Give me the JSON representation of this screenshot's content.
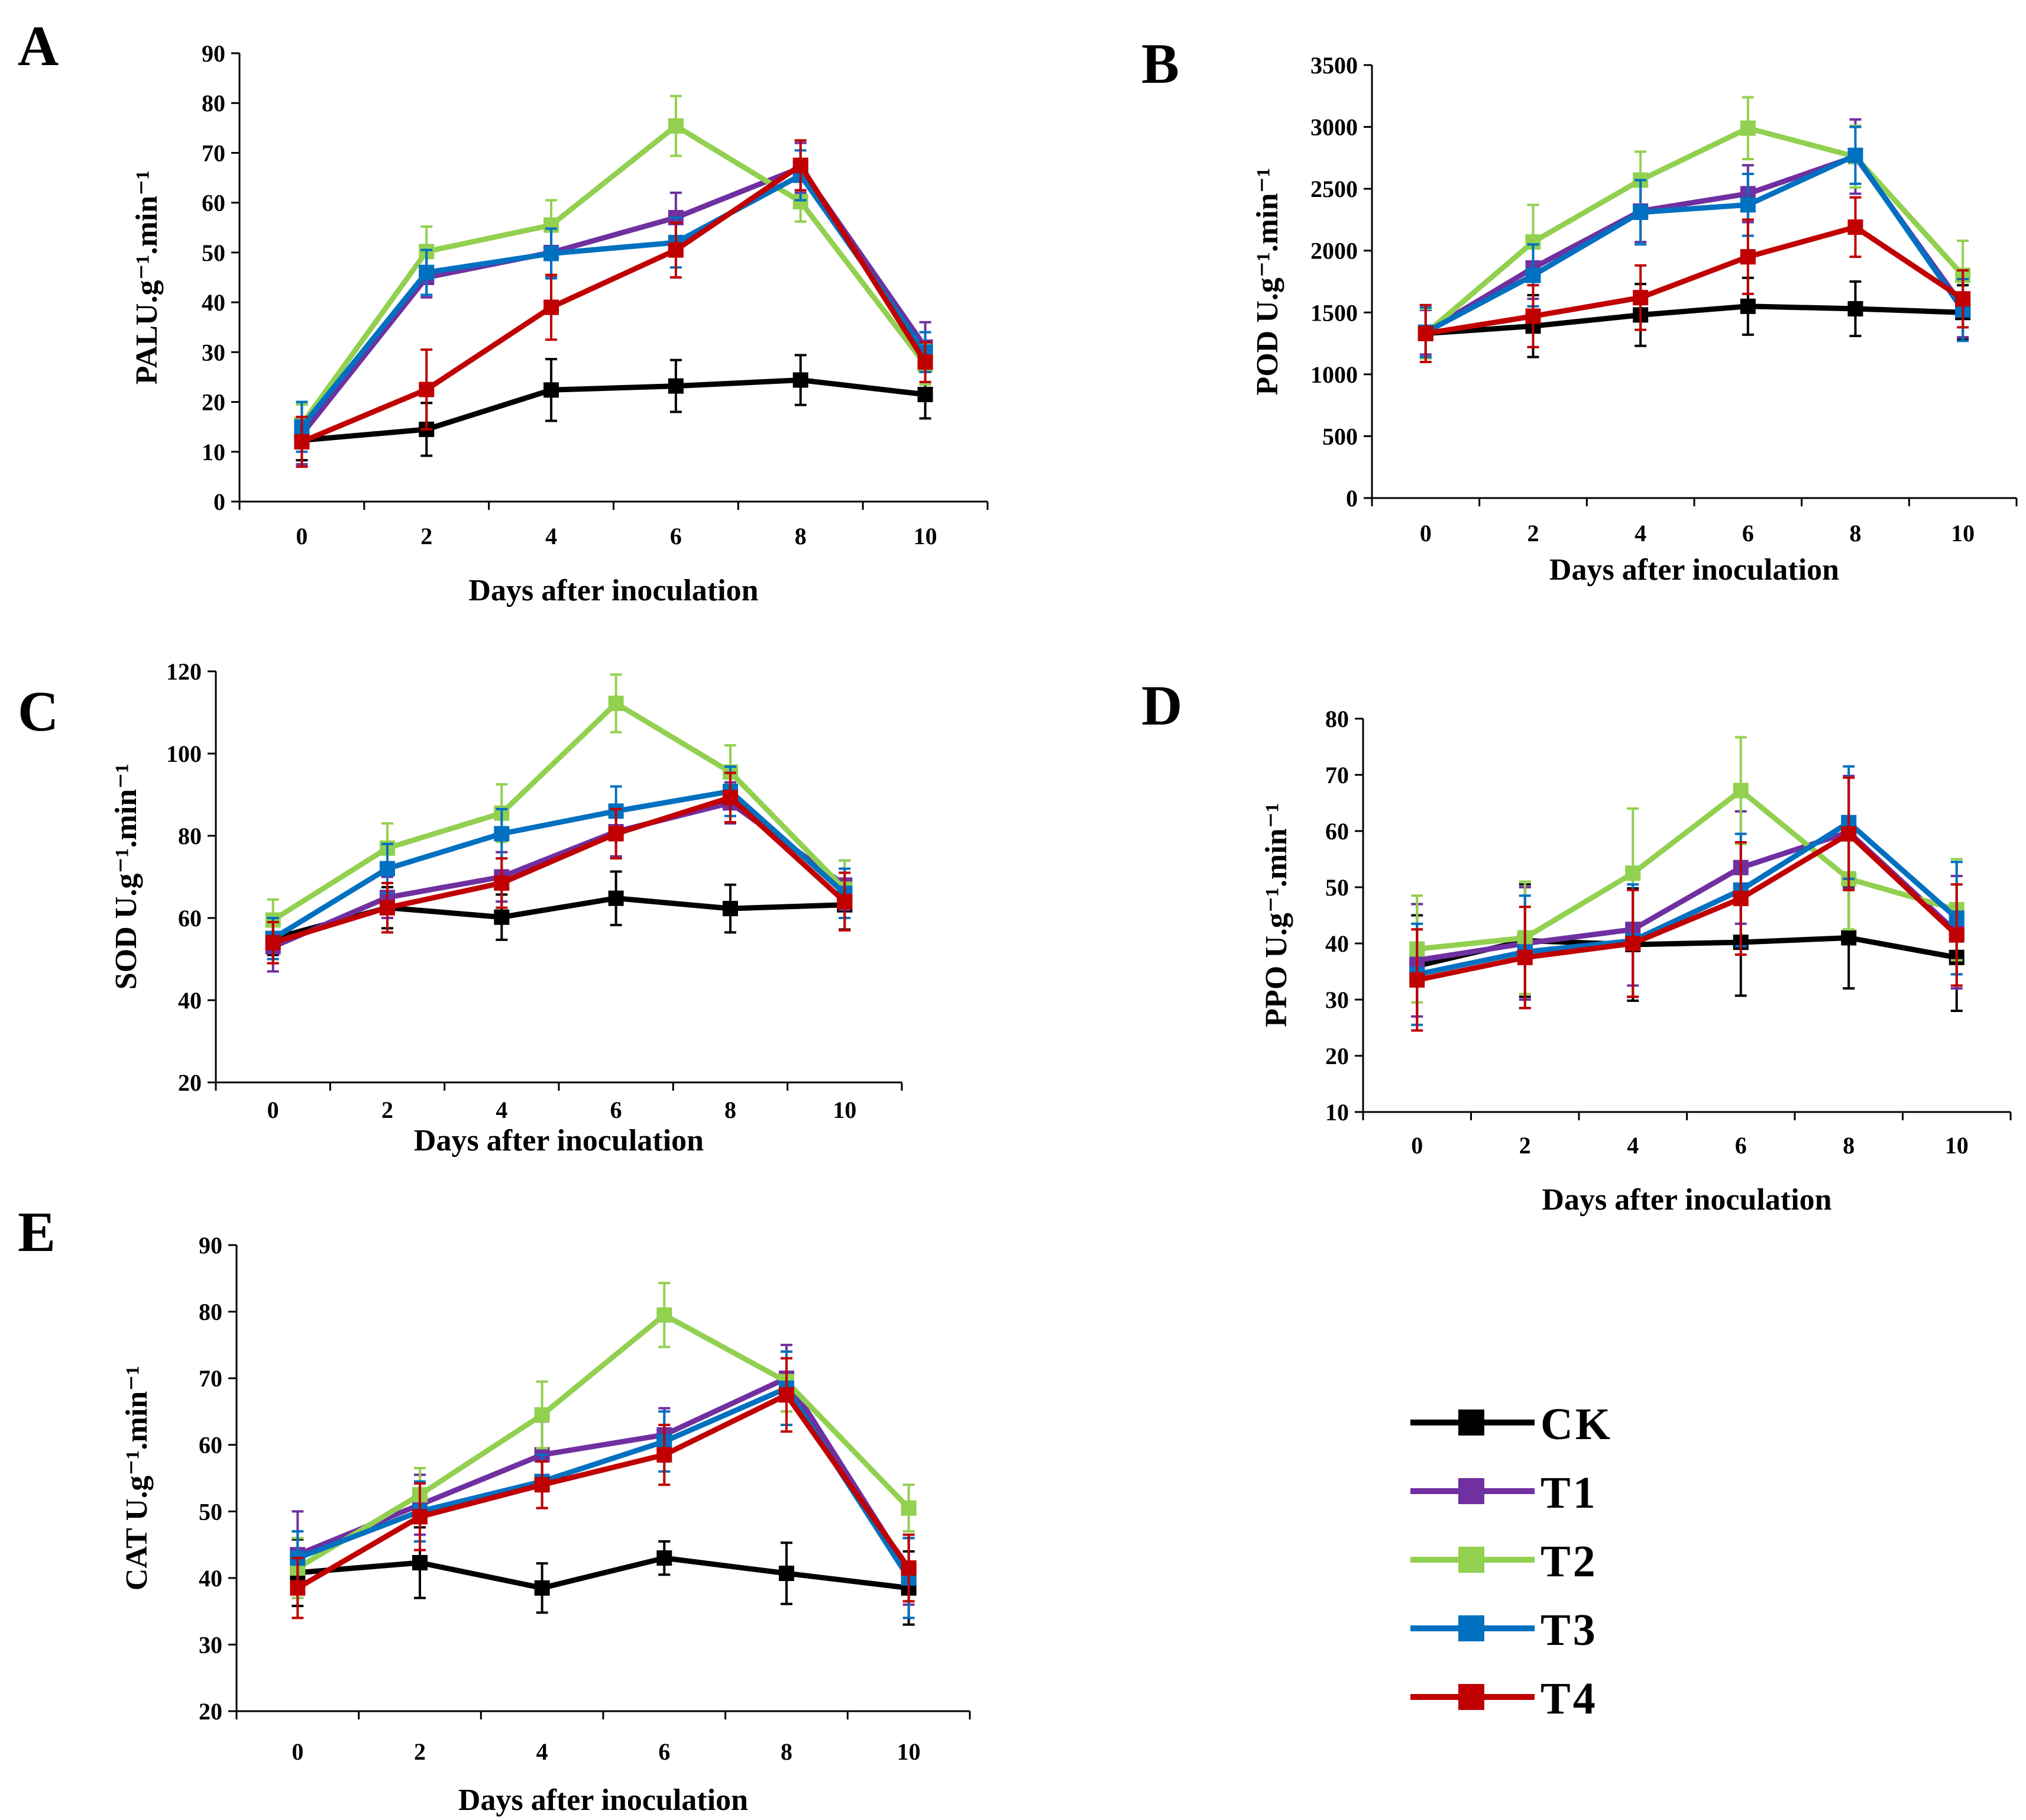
{
  "colors": {
    "CK": "#000000",
    "T1": "#7030a0",
    "T2": "#92d050",
    "T3": "#0070c0",
    "T4": "#c00000"
  },
  "legend": {
    "items": [
      "CK",
      "T1",
      "T2",
      "T3",
      "T4"
    ]
  },
  "chart_data": [
    {
      "id": "A",
      "type": "line",
      "panel_label": "A",
      "xlabel": "Days after inoculation",
      "ylabel": "PALU.g⁻¹.min⁻¹",
      "ylim": [
        0,
        90
      ],
      "yticks": [
        0,
        10,
        20,
        30,
        40,
        50,
        60,
        70,
        80,
        90
      ],
      "x": [
        0,
        2,
        4,
        6,
        8,
        10
      ],
      "series": [
        {
          "name": "CK",
          "values": [
            12.3,
            14.5,
            22.4,
            23.2,
            24.4,
            21.5
          ],
          "errors": [
            4,
            5.3,
            6.2,
            5.2,
            5,
            4.8
          ]
        },
        {
          "name": "T1",
          "values": [
            13.5,
            45,
            50,
            57,
            67,
            31
          ],
          "errors": [
            6,
            4,
            5,
            5,
            5,
            5
          ]
        },
        {
          "name": "T2",
          "values": [
            15.5,
            50.2,
            55.5,
            75.4,
            60.2,
            27.5
          ],
          "errors": [
            4,
            5,
            5,
            6,
            4,
            4
          ]
        },
        {
          "name": "T3",
          "values": [
            15,
            46,
            49.8,
            52,
            65.5,
            30
          ],
          "errors": [
            5,
            4.5,
            5,
            5,
            5,
            4
          ]
        },
        {
          "name": "T4",
          "values": [
            12,
            22.5,
            39,
            50.5,
            67.5,
            28
          ],
          "errors": [
            5,
            8,
            6.5,
            5.5,
            5,
            4
          ]
        }
      ]
    },
    {
      "id": "B",
      "type": "line",
      "panel_label": "B",
      "xlabel": "Days after inoculation",
      "ylabel": "POD U.g⁻¹.min⁻¹",
      "ylim": [
        0,
        3500
      ],
      "yticks": [
        0,
        500,
        1000,
        1500,
        2000,
        2500,
        3000,
        3500
      ],
      "x": [
        0,
        2,
        4,
        6,
        8,
        10
      ],
      "series": [
        {
          "name": "CK",
          "values": [
            1330,
            1390,
            1480,
            1550,
            1530,
            1500
          ],
          "errors": [
            200,
            250,
            250,
            230,
            220,
            220
          ]
        },
        {
          "name": "T1",
          "values": [
            1340,
            1860,
            2320,
            2460,
            2760,
            1550
          ],
          "errors": [
            180,
            250,
            250,
            230,
            300,
            250
          ]
        },
        {
          "name": "T2",
          "values": [
            1330,
            2070,
            2570,
            2990,
            2760,
            1800
          ],
          "errors": [
            200,
            300,
            230,
            250,
            250,
            280
          ]
        },
        {
          "name": "T3",
          "values": [
            1340,
            1800,
            2310,
            2370,
            2770,
            1520
          ],
          "errors": [
            200,
            250,
            260,
            250,
            230,
            250
          ]
        },
        {
          "name": "T4",
          "values": [
            1330,
            1470,
            1620,
            1950,
            2190,
            1610
          ],
          "errors": [
            230,
            250,
            260,
            300,
            240,
            230
          ]
        }
      ]
    },
    {
      "id": "C",
      "type": "line",
      "panel_label": "C",
      "xlabel": "Days after inoculation",
      "ylabel": "SOD U.g⁻¹.min⁻¹",
      "ylim": [
        20,
        120
      ],
      "yticks": [
        20,
        40,
        60,
        80,
        100,
        120
      ],
      "x": [
        0,
        2,
        4,
        6,
        8,
        10
      ],
      "series": [
        {
          "name": "CK",
          "values": [
            55,
            62.5,
            60.2,
            64.8,
            62.3,
            63.2
          ],
          "errors": [
            4,
            5,
            5.5,
            6.5,
            5.8,
            6
          ]
        },
        {
          "name": "T1",
          "values": [
            53,
            65,
            70,
            81,
            88,
            68
          ],
          "errors": [
            6,
            5,
            6,
            6,
            5,
            6
          ]
        },
        {
          "name": "T2",
          "values": [
            59.5,
            77,
            85.5,
            112.2,
            95.5,
            67
          ],
          "errors": [
            5,
            6,
            7,
            7,
            6.5,
            7
          ]
        },
        {
          "name": "T3",
          "values": [
            55,
            72,
            80.5,
            86,
            90.8,
            66
          ],
          "errors": [
            5,
            6,
            6,
            6,
            6,
            6
          ]
        },
        {
          "name": "T4",
          "values": [
            54,
            62.5,
            68.5,
            80.5,
            89.3,
            64
          ],
          "errors": [
            5,
            6,
            6,
            6,
            6,
            7
          ]
        }
      ]
    },
    {
      "id": "D",
      "type": "line",
      "panel_label": "D",
      "xlabel": "Days after inoculation",
      "ylabel": "PPO U.g⁻¹.min⁻¹",
      "ylim": [
        10,
        80
      ],
      "yticks": [
        10,
        20,
        30,
        40,
        50,
        60,
        70,
        80
      ],
      "x": [
        0,
        2,
        4,
        6,
        8,
        10
      ],
      "series": [
        {
          "name": "CK",
          "values": [
            36,
            40.5,
            39.8,
            40.2,
            41,
            37.5
          ],
          "errors": [
            9,
            10,
            10,
            9.5,
            9,
            9.5
          ]
        },
        {
          "name": "T1",
          "values": [
            37,
            40,
            42.5,
            53.5,
            59.8,
            42
          ],
          "errors": [
            10,
            10,
            10,
            10,
            10,
            10
          ]
        },
        {
          "name": "T2",
          "values": [
            39,
            41,
            52.5,
            67.2,
            51.5,
            46
          ],
          "errors": [
            9.5,
            10,
            11.5,
            9.5,
            9,
            9
          ]
        },
        {
          "name": "T3",
          "values": [
            34.5,
            38.5,
            40.5,
            49.5,
            61.5,
            44.5
          ],
          "errors": [
            9,
            10,
            10,
            10,
            10,
            10
          ]
        },
        {
          "name": "T4",
          "values": [
            33.5,
            37.5,
            40,
            48,
            59.5,
            41.5
          ],
          "errors": [
            9,
            9,
            9.5,
            10,
            10,
            9
          ]
        }
      ]
    },
    {
      "id": "E",
      "type": "line",
      "panel_label": "E",
      "xlabel": "Days after inoculation",
      "ylabel": "CAT U.g⁻¹.min⁻¹",
      "ylim": [
        20,
        90
      ],
      "yticks": [
        20,
        30,
        40,
        50,
        60,
        70,
        80,
        90
      ],
      "x": [
        0,
        2,
        4,
        6,
        8,
        10
      ],
      "series": [
        {
          "name": "CK",
          "values": [
            40.8,
            42.3,
            38.5,
            43,
            40.7,
            38.5
          ],
          "errors": [
            5,
            5.3,
            3.7,
            2.5,
            4.6,
            5.5
          ]
        },
        {
          "name": "T1",
          "values": [
            43.5,
            51,
            58.5,
            61.5,
            70,
            41
          ],
          "errors": [
            6.5,
            4.5,
            5,
            4,
            5,
            5
          ]
        },
        {
          "name": "T2",
          "values": [
            41.5,
            52.5,
            64.5,
            79.5,
            69.5,
            50.5
          ],
          "errors": [
            4.5,
            4,
            5,
            4.8,
            4.5,
            3.5
          ]
        },
        {
          "name": "T3",
          "values": [
            43,
            50,
            54.5,
            60.5,
            68.5,
            40
          ],
          "errors": [
            4,
            4.5,
            4,
            4.5,
            5.5,
            6
          ]
        },
        {
          "name": "T4",
          "values": [
            38.5,
            49.2,
            54,
            58.5,
            67.5,
            41.5
          ],
          "errors": [
            4.5,
            5,
            3.5,
            4.5,
            5.5,
            5
          ]
        }
      ]
    }
  ]
}
